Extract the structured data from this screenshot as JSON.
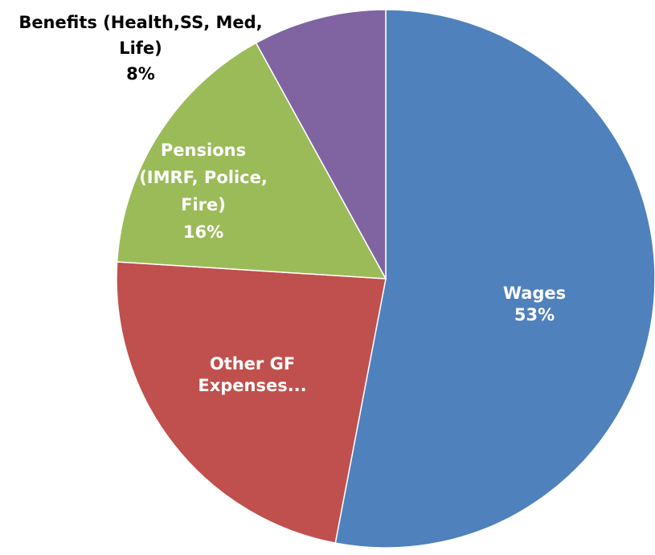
{
  "chart_data": {
    "type": "pie",
    "title": "",
    "slices": [
      {
        "name": "Wages",
        "value": 53,
        "percent_label": "53%",
        "label_lines": [
          "Wages",
          "53%"
        ],
        "color": "#4F81BD"
      },
      {
        "name": "Other GF Expenses...",
        "value": 23,
        "percent_label": "",
        "label_lines": [
          "Other GF",
          "Expenses..."
        ],
        "color": "#C0504D"
      },
      {
        "name": "Pensions (IMRF, Police, Fire)",
        "value": 16,
        "percent_label": "16%",
        "label_lines": [
          "Pensions",
          "(IMRF, Police,",
          "Fire)",
          "16%"
        ],
        "color": "#9BBB59"
      },
      {
        "name": "Benefits (Health,SS, Med, Life)",
        "value": 8,
        "percent_label": "8%",
        "label_lines": [
          "Benefits (Health,SS, Med,",
          "Life)",
          "8%"
        ],
        "color": "#8064A2"
      }
    ],
    "start_angle_deg": 0,
    "direction": "clockwise",
    "legend": "none",
    "data_labels": "inside"
  }
}
